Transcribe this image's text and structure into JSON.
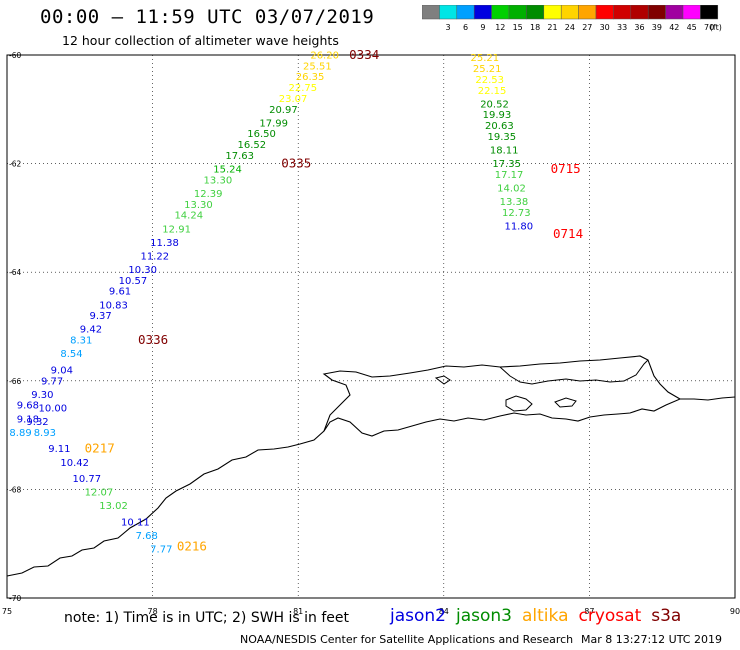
{
  "title": "00:00 – 11:59 UTC 03/07/2019",
  "subtitle": "12 hour collection of altimeter wave heights",
  "scale": {
    "unit": "(ft)",
    "bins": [
      {
        "label": "",
        "color": "#7f7f7f"
      },
      {
        "label": "3",
        "color": "#00e5e5"
      },
      {
        "label": "6",
        "color": "#00a0ff"
      },
      {
        "label": "9",
        "color": "#0000e0"
      },
      {
        "label": "12",
        "color": "#00d000"
      },
      {
        "label": "15",
        "color": "#00b000"
      },
      {
        "label": "18",
        "color": "#008c00"
      },
      {
        "label": "21",
        "color": "#ffff00"
      },
      {
        "label": "24",
        "color": "#ffd400"
      },
      {
        "label": "27",
        "color": "#ffa500"
      },
      {
        "label": "30",
        "color": "#ff0000"
      },
      {
        "label": "33",
        "color": "#d00000"
      },
      {
        "label": "36",
        "color": "#b00000"
      },
      {
        "label": "39",
        "color": "#800000"
      },
      {
        "label": "42",
        "color": "#a000a0"
      },
      {
        "label": "45",
        "color": "#ff00ff"
      },
      {
        "label": "70",
        "color": "#000000"
      }
    ]
  },
  "axes": {
    "lon_ticks": [
      "75",
      "78",
      "81",
      "84",
      "87",
      "90"
    ],
    "lat_ticks": [
      "-60",
      "-62",
      "-64",
      "-66",
      "-68",
      "-70"
    ],
    "lon_range": [
      75,
      90
    ],
    "lat_range": [
      -60,
      -70
    ]
  },
  "tracks": [
    {
      "time_labels": [
        {
          "text": "0334",
          "color": "#800000",
          "lon": 82.05,
          "lat": -60.0
        },
        {
          "text": "0335",
          "color": "#800000",
          "lon": 80.65,
          "lat": -62.0
        },
        {
          "text": "0336",
          "color": "#800000",
          "lon": 77.7,
          "lat": -65.25
        }
      ],
      "points": [
        {
          "value": "26.20",
          "color": "#ffd400",
          "lon": 81.25,
          "lat": -60.0
        },
        {
          "value": "25.51",
          "color": "#ffd400",
          "lon": 81.1,
          "lat": -60.2
        },
        {
          "value": "26.35",
          "color": "#ffd400",
          "lon": 80.95,
          "lat": -60.4
        },
        {
          "value": "22.75",
          "color": "#ffff00",
          "lon": 80.8,
          "lat": -60.6
        },
        {
          "value": "23.07",
          "color": "#ffff00",
          "lon": 80.6,
          "lat": -60.8
        },
        {
          "value": "20.97",
          "color": "#008c00",
          "lon": 80.4,
          "lat": -61.0
        },
        {
          "value": "17.99",
          "color": "#008c00",
          "lon": 80.2,
          "lat": -61.25
        },
        {
          "value": "16.50",
          "color": "#008c00",
          "lon": 79.95,
          "lat": -61.45
        },
        {
          "value": "16.52",
          "color": "#008c00",
          "lon": 79.75,
          "lat": -61.65
        },
        {
          "value": "17.63",
          "color": "#008c00",
          "lon": 79.5,
          "lat": -61.85
        },
        {
          "value": "15.24",
          "color": "#00b000",
          "lon": 79.25,
          "lat": -62.1
        },
        {
          "value": "13.30",
          "color": "#40d040",
          "lon": 79.05,
          "lat": -62.3
        },
        {
          "value": "12.39",
          "color": "#40d040",
          "lon": 78.85,
          "lat": -62.55
        },
        {
          "value": "13.30",
          "color": "#40d040",
          "lon": 78.65,
          "lat": -62.75
        },
        {
          "value": "14.24",
          "color": "#40d040",
          "lon": 78.45,
          "lat": -62.95
        },
        {
          "value": "12.91",
          "color": "#40d040",
          "lon": 78.2,
          "lat": -63.2
        },
        {
          "value": "11.38",
          "color": "#0000e0",
          "lon": 77.95,
          "lat": -63.45
        },
        {
          "value": "11.22",
          "color": "#0000e0",
          "lon": 77.75,
          "lat": -63.7
        },
        {
          "value": "10.30",
          "color": "#0000e0",
          "lon": 77.5,
          "lat": -63.95
        },
        {
          "value": "10.57",
          "color": "#0000e0",
          "lon": 77.3,
          "lat": -64.15
        },
        {
          "value": "9.61",
          "color": "#0000e0",
          "lon": 77.1,
          "lat": -64.35
        },
        {
          "value": "10.83",
          "color": "#0000e0",
          "lon": 76.9,
          "lat": -64.6
        },
        {
          "value": "9.37",
          "color": "#0000e0",
          "lon": 76.7,
          "lat": -64.8
        },
        {
          "value": "9.42",
          "color": "#0000e0",
          "lon": 76.5,
          "lat": -65.05
        },
        {
          "value": "8.31",
          "color": "#00a0ff",
          "lon": 76.3,
          "lat": -65.25
        },
        {
          "value": "8.54",
          "color": "#00a0ff",
          "lon": 76.1,
          "lat": -65.5
        },
        {
          "value": "9.04",
          "color": "#0000e0",
          "lon": 75.9,
          "lat": -65.8
        },
        {
          "value": "9.77",
          "color": "#0000e0",
          "lon": 75.7,
          "lat": -66.0
        },
        {
          "value": "9.30",
          "color": "#0000e0",
          "lon": 75.5,
          "lat": -66.25
        }
      ]
    },
    {
      "time_labels": [
        {
          "text": "0217",
          "color": "#ffa500",
          "lon": 76.6,
          "lat": -67.25
        },
        {
          "text": "0216",
          "color": "#ffa500",
          "lon": 78.5,
          "lat": -69.05
        }
      ],
      "points": [
        {
          "value": "9.68",
          "color": "#0000e0",
          "lon": 75.2,
          "lat": -66.45
        },
        {
          "value": "10.00",
          "color": "#0000e0",
          "lon": 75.65,
          "lat": -66.5
        },
        {
          "value": "9.18",
          "color": "#0000e0",
          "lon": 75.2,
          "lat": -66.7
        },
        {
          "value": "9.32",
          "color": "#0000e0",
          "lon": 75.4,
          "lat": -66.75
        },
        {
          "value": "8.89",
          "color": "#00a0ff",
          "lon": 75.05,
          "lat": -66.95
        },
        {
          "value": "8.93",
          "color": "#00a0ff",
          "lon": 75.55,
          "lat": -66.95
        },
        {
          "value": "9.11",
          "color": "#0000e0",
          "lon": 75.85,
          "lat": -67.25
        },
        {
          "value": "10.42",
          "color": "#0000e0",
          "lon": 76.1,
          "lat": -67.5
        },
        {
          "value": "10.77",
          "color": "#0000e0",
          "lon": 76.35,
          "lat": -67.8
        },
        {
          "value": "12.07",
          "color": "#40d040",
          "lon": 76.6,
          "lat": -68.05
        },
        {
          "value": "13.02",
          "color": "#40d040",
          "lon": 76.9,
          "lat": -68.3
        },
        {
          "value": "10.11",
          "color": "#0000e0",
          "lon": 77.35,
          "lat": -68.6
        },
        {
          "value": "7.68",
          "color": "#00a0ff",
          "lon": 77.65,
          "lat": -68.85
        },
        {
          "value": "7.77",
          "color": "#00a0ff",
          "lon": 77.95,
          "lat": -69.1
        }
      ]
    },
    {
      "time_labels": [
        {
          "text": "0715",
          "color": "#ff0000",
          "lon": 86.2,
          "lat": -62.1
        },
        {
          "text": "0714",
          "color": "#ff0000",
          "lon": 86.25,
          "lat": -63.3
        }
      ],
      "points": [
        {
          "value": "25.21",
          "color": "#ffd400",
          "lon": 84.55,
          "lat": -60.05
        },
        {
          "value": "25.21",
          "color": "#ffd400",
          "lon": 84.6,
          "lat": -60.25
        },
        {
          "value": "22.53",
          "color": "#ffff00",
          "lon": 84.65,
          "lat": -60.45
        },
        {
          "value": "22.15",
          "color": "#ffff00",
          "lon": 84.7,
          "lat": -60.65
        },
        {
          "value": "20.52",
          "color": "#008c00",
          "lon": 84.75,
          "lat": -60.9
        },
        {
          "value": "19.93",
          "color": "#008c00",
          "lon": 84.8,
          "lat": -61.1
        },
        {
          "value": "20.63",
          "color": "#008c00",
          "lon": 84.85,
          "lat": -61.3
        },
        {
          "value": "19.35",
          "color": "#008c00",
          "lon": 84.9,
          "lat": -61.5
        },
        {
          "value": "18.11",
          "color": "#008c00",
          "lon": 84.95,
          "lat": -61.75
        },
        {
          "value": "17.35",
          "color": "#008c00",
          "lon": 85.0,
          "lat": -62.0
        },
        {
          "value": "17.17",
          "color": "#40d040",
          "lon": 85.05,
          "lat": -62.2
        },
        {
          "value": "14.02",
          "color": "#40d040",
          "lon": 85.1,
          "lat": -62.45
        },
        {
          "value": "13.38",
          "color": "#40d040",
          "lon": 85.15,
          "lat": -62.7
        },
        {
          "value": "12.73",
          "color": "#40d040",
          "lon": 85.2,
          "lat": -62.9
        },
        {
          "value": "11.80",
          "color": "#0000e0",
          "lon": 85.25,
          "lat": -63.15
        }
      ]
    }
  ],
  "note": "note: 1) Time is in UTC; 2) SWH is in feet",
  "satellites": [
    {
      "name": "jason2",
      "color": "#0000e0"
    },
    {
      "name": "jason3",
      "color": "#008c00"
    },
    {
      "name": "altika",
      "color": "#ffa500"
    },
    {
      "name": "cryosat",
      "color": "#ff0000"
    },
    {
      "name": "s3a",
      "color": "#800000"
    }
  ],
  "credit": "NOAA/NESDIS Center for Satellite Applications and Research",
  "generated": "Mar  8 13:27:12 UTC 2019"
}
